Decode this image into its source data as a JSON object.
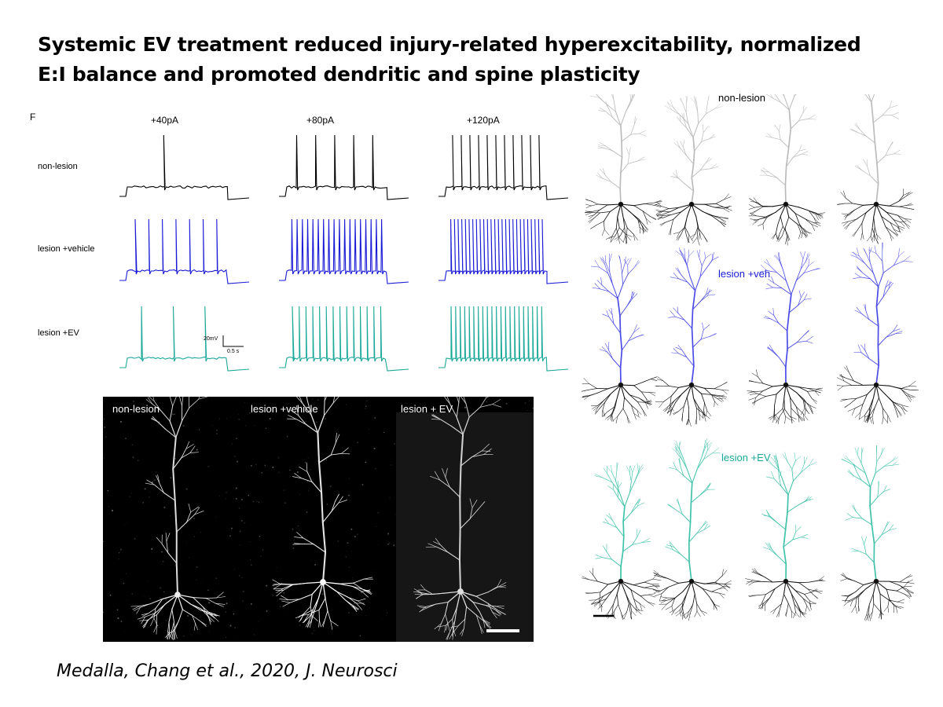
{
  "slide": {
    "title_line1": "Systemic EV treatment reduced injury-related hyperexcitability, normalized",
    "title_line2": "E:I balance and promoted dendritic and spine plasticity",
    "citation": "Medalla, Chang et al., 2020, J. Neurosci"
  },
  "ephys": {
    "panel_letter": "F",
    "stimuli": [
      "+40pA",
      "+80pA",
      "+120pA"
    ],
    "rows": [
      {
        "label": "non-lesion",
        "color": "#000000",
        "spikes": [
          1,
          5,
          11
        ]
      },
      {
        "label": "lesion +vehicle",
        "color": "#1a1ad6",
        "spikes": [
          7,
          18,
          26
        ]
      },
      {
        "label": "lesion +EV",
        "color": "#1aa898",
        "spikes": [
          3,
          14,
          21
        ]
      }
    ],
    "scale_bar_y": "20mV",
    "scale_bar_x": "0.5 s"
  },
  "microscopy": {
    "labels": [
      "non-lesion",
      "lesion +vehicle",
      "lesion + EV"
    ]
  },
  "reconstructions": {
    "groups": [
      {
        "label": "non-lesion",
        "apical_color": "#bbbbbb",
        "label_color": "#000000"
      },
      {
        "label": "lesion +veh",
        "apical_color": "#4a4ae6",
        "label_color": "#1a1ad6"
      },
      {
        "label": "lesion +EV",
        "apical_color": "#3fc2a9",
        "label_color": "#1aa898"
      }
    ]
  }
}
